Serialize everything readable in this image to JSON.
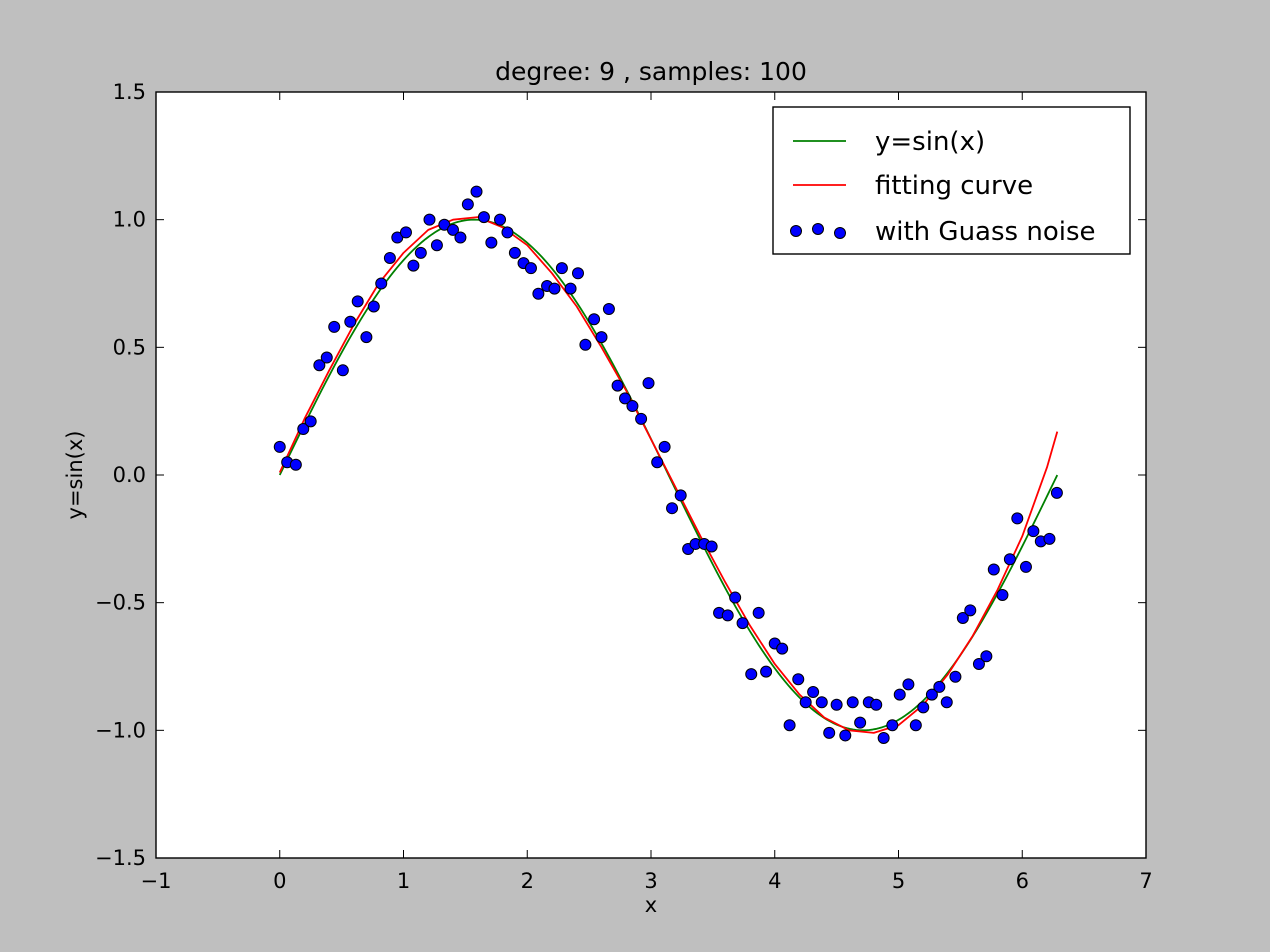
{
  "chart_data": {
    "type": "scatter",
    "title": "degree: 9 , samples: 100",
    "xlabel": "x",
    "ylabel": "y=sin(x)",
    "xlim": [
      -1,
      7
    ],
    "ylim": [
      -1.5,
      1.5
    ],
    "xticks": [
      -1,
      0,
      1,
      2,
      3,
      4,
      5,
      6,
      7
    ],
    "xtick_labels": [
      "−1",
      "0",
      "1",
      "2",
      "3",
      "4",
      "5",
      "6",
      "7"
    ],
    "yticks": [
      -1.5,
      -1.0,
      -0.5,
      0.0,
      0.5,
      1.0,
      1.5
    ],
    "ytick_labels": [
      "−1.5",
      "−1.0",
      "−0.5",
      "0.0",
      "0.5",
      "1.0",
      "1.5"
    ],
    "grid": false,
    "legend_position": "top-right",
    "series": [
      {
        "name": "y=sin(x)",
        "kind": "line",
        "color": "#008000",
        "function": "sin",
        "x_range": [
          0.0,
          6.283
        ]
      },
      {
        "name": "fitting curve",
        "kind": "line",
        "color": "#ff0000",
        "x": [
          0.0,
          0.2,
          0.4,
          0.6,
          0.8,
          1.0,
          1.2,
          1.4,
          1.6,
          1.8,
          2.0,
          2.2,
          2.4,
          2.6,
          2.8,
          3.0,
          3.2,
          3.4,
          3.6,
          3.8,
          4.0,
          4.2,
          4.4,
          4.6,
          4.8,
          5.0,
          5.2,
          5.4,
          5.6,
          5.8,
          6.0,
          6.2,
          6.283
        ],
        "y": [
          0.01,
          0.22,
          0.41,
          0.59,
          0.75,
          0.87,
          0.96,
          1.0,
          1.01,
          0.97,
          0.9,
          0.79,
          0.66,
          0.5,
          0.33,
          0.14,
          -0.05,
          -0.24,
          -0.42,
          -0.59,
          -0.74,
          -0.86,
          -0.95,
          -1.0,
          -1.01,
          -0.98,
          -0.9,
          -0.78,
          -0.63,
          -0.45,
          -0.24,
          0.03,
          0.17
        ]
      },
      {
        "name": "with Guass noise",
        "kind": "scatter",
        "color": "#0000ff",
        "x": [
          0.0,
          0.06,
          0.13,
          0.19,
          0.25,
          0.32,
          0.38,
          0.44,
          0.51,
          0.57,
          0.63,
          0.7,
          0.76,
          0.82,
          0.89,
          0.95,
          1.02,
          1.08,
          1.14,
          1.21,
          1.27,
          1.33,
          1.4,
          1.46,
          1.52,
          1.59,
          1.65,
          1.71,
          1.78,
          1.84,
          1.9,
          1.97,
          2.03,
          2.09,
          2.16,
          2.22,
          2.28,
          2.35,
          2.41,
          2.47,
          2.54,
          2.6,
          2.66,
          2.73,
          2.79,
          2.85,
          2.92,
          2.98,
          3.05,
          3.11,
          3.17,
          3.24,
          3.3,
          3.36,
          3.43,
          3.49,
          3.55,
          3.62,
          3.68,
          3.74,
          3.81,
          3.87,
          3.93,
          4.0,
          4.06,
          4.12,
          4.19,
          4.25,
          4.31,
          4.38,
          4.44,
          4.5,
          4.57,
          4.63,
          4.69,
          4.76,
          4.82,
          4.88,
          4.95,
          5.01,
          5.08,
          5.14,
          5.2,
          5.27,
          5.33,
          5.39,
          5.46,
          5.52,
          5.58,
          5.65,
          5.71,
          5.77,
          5.84,
          5.9,
          5.96,
          6.03,
          6.09,
          6.15,
          6.22,
          6.28
        ],
        "y": [
          0.11,
          0.05,
          0.04,
          0.18,
          0.21,
          0.43,
          0.46,
          0.58,
          0.41,
          0.6,
          0.68,
          0.54,
          0.66,
          0.75,
          0.85,
          0.93,
          0.95,
          0.82,
          0.87,
          1.0,
          0.9,
          0.98,
          0.96,
          0.93,
          1.06,
          1.11,
          1.01,
          0.91,
          1.0,
          0.95,
          0.87,
          0.83,
          0.81,
          0.71,
          0.74,
          0.73,
          0.81,
          0.73,
          0.79,
          0.51,
          0.61,
          0.54,
          0.65,
          0.35,
          0.3,
          0.27,
          0.22,
          0.36,
          0.05,
          0.11,
          -0.13,
          -0.08,
          -0.29,
          -0.27,
          -0.27,
          -0.28,
          -0.54,
          -0.55,
          -0.48,
          -0.58,
          -0.78,
          -0.54,
          -0.77,
          -0.66,
          -0.68,
          -0.98,
          -0.8,
          -0.89,
          -0.85,
          -0.89,
          -1.01,
          -0.9,
          -1.02,
          -0.89,
          -0.97,
          -0.89,
          -0.9,
          -1.03,
          -0.98,
          -0.86,
          -0.82,
          -0.98,
          -0.91,
          -0.86,
          -0.83,
          -0.89,
          -0.79,
          -0.56,
          -0.53,
          -0.74,
          -0.71,
          -0.37,
          -0.47,
          -0.33,
          -0.17,
          -0.36,
          -0.22,
          -0.26,
          -0.25,
          -0.07
        ]
      }
    ]
  }
}
